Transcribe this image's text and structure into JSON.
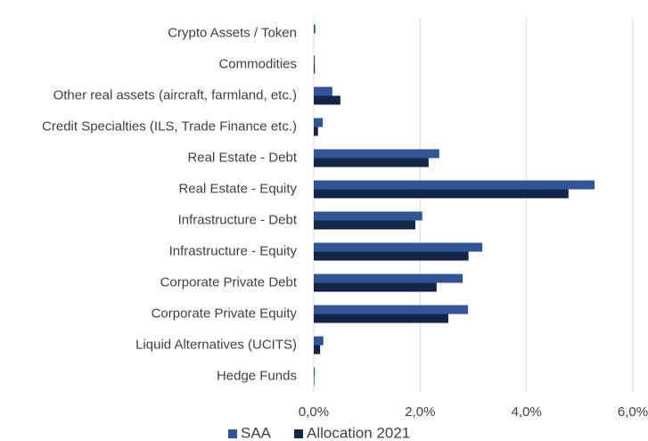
{
  "chart_data": {
    "type": "barh",
    "categories": [
      "Crypto Assets / Token",
      "Commodities",
      "Other real assets (aircraft, farmland, etc.)",
      "Credit Specialties (ILS, Trade Finance etc.)",
      "Real Estate - Debt",
      "Real Estate - Equity",
      "Infrastructure - Debt",
      "Infrastructure - Equity",
      "Corporate Private Debt",
      "Corporate Private Equity",
      "Liquid Alternatives (UCITS)",
      "Hedge Funds"
    ],
    "series": [
      {
        "name": "SAA",
        "color": "#2f5597",
        "values": [
          0.03,
          0.02,
          0.35,
          0.17,
          2.36,
          5.28,
          2.04,
          3.17,
          2.8,
          2.9,
          0.18,
          0.02
        ]
      },
      {
        "name": "Allocation 2021",
        "color": "#14254a",
        "values": [
          0.0,
          0.02,
          0.5,
          0.08,
          2.16,
          4.79,
          1.91,
          2.91,
          2.31,
          2.53,
          0.12,
          0.01
        ]
      }
    ],
    "xlim": [
      0,
      6
    ],
    "xticks": [
      {
        "value": 0,
        "label": "0,0%"
      },
      {
        "value": 2,
        "label": "2,0%"
      },
      {
        "value": 4,
        "label": "4,0%"
      },
      {
        "value": 6,
        "label": "6,0%"
      }
    ],
    "grid": true,
    "legend": "bottom"
  }
}
